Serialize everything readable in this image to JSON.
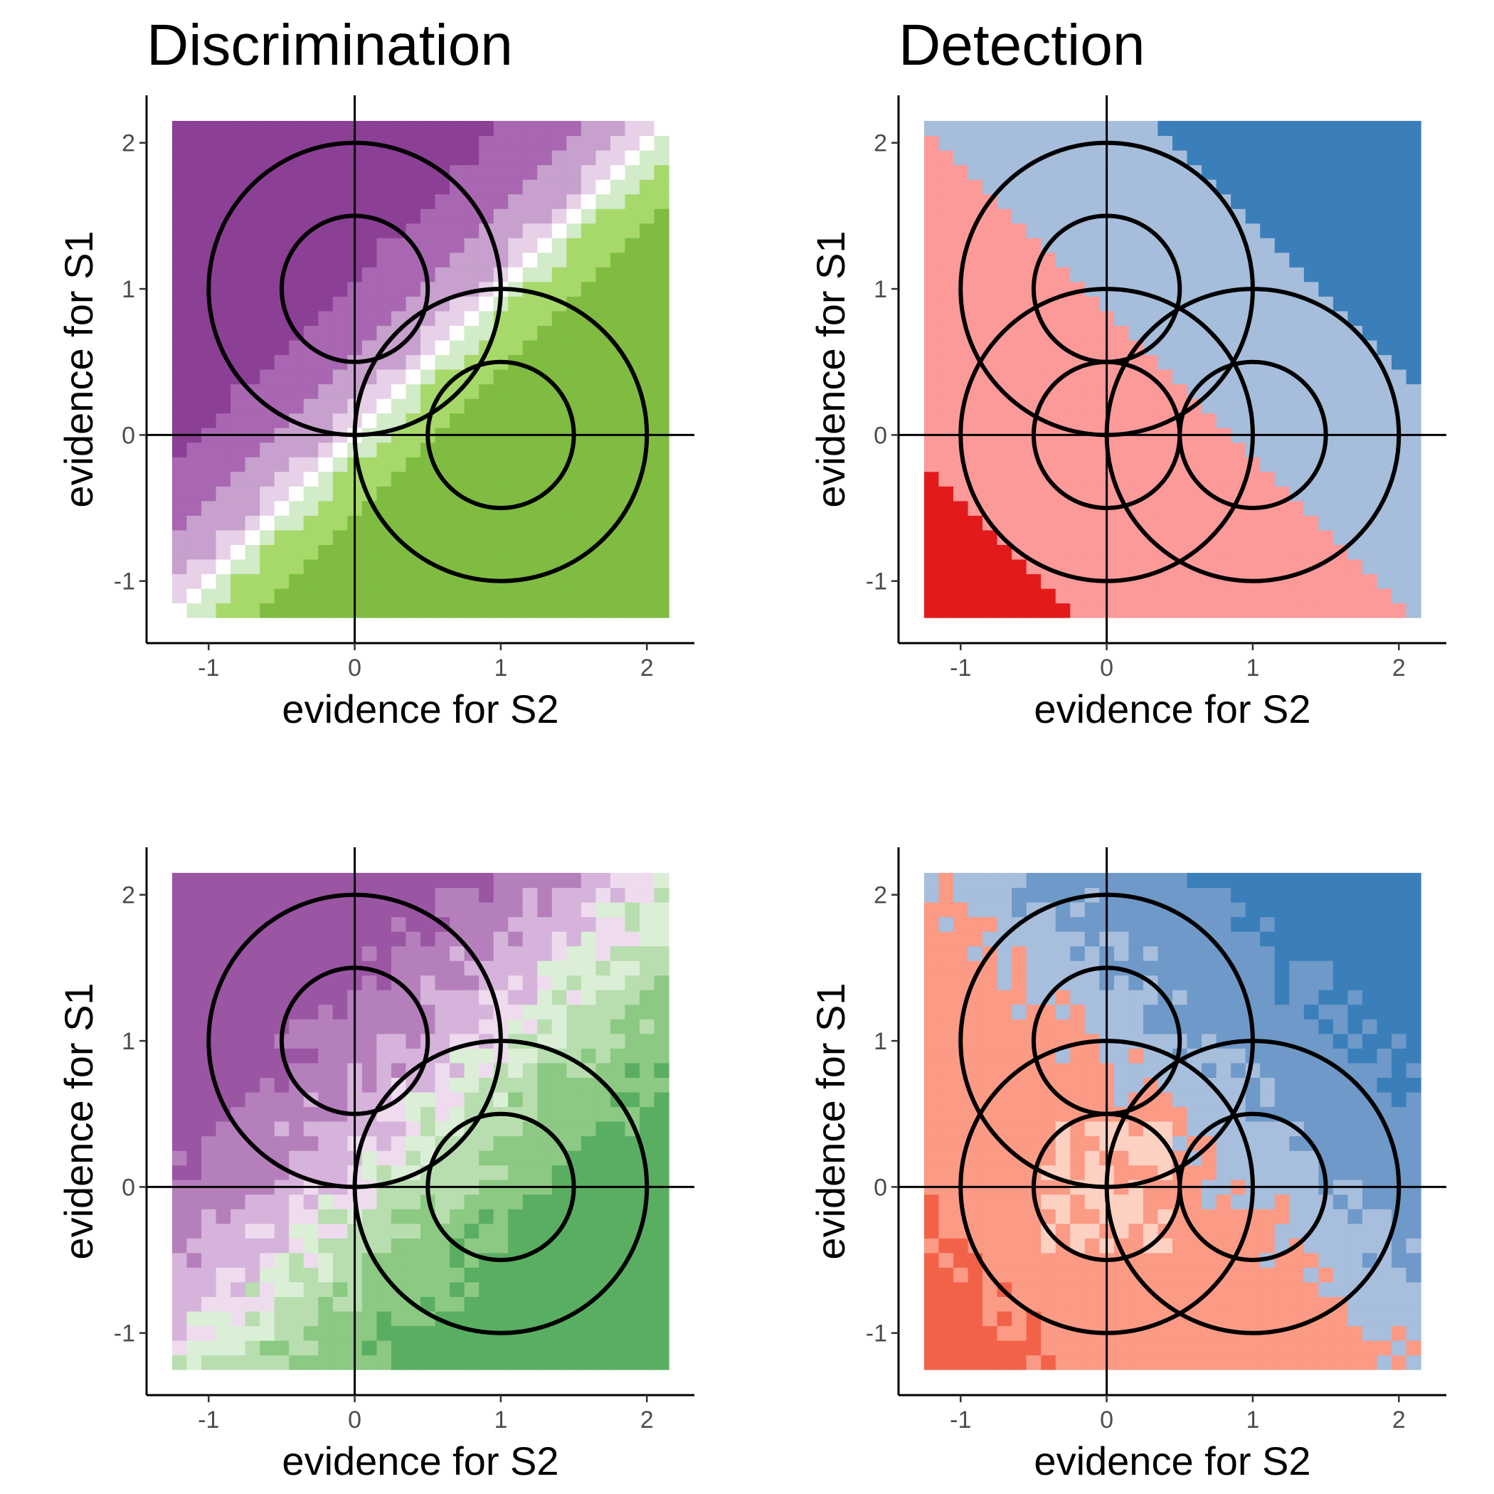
{
  "figure": {
    "titles": [
      "Discrimination",
      "Detection"
    ]
  },
  "chart_data": [
    {
      "type": "heatmap",
      "panel": "top-left",
      "title": "Discrimination",
      "xlabel": "evidence for S2",
      "ylabel": "evidence for S1",
      "xlim": [
        -1.425,
        2.325
      ],
      "ylim": [
        -1.425,
        2.325
      ],
      "xticks": [
        -1,
        0,
        1,
        2
      ],
      "yticks": [
        -1,
        0,
        1,
        2
      ],
      "grid": false,
      "grid_range": [
        -1.25,
        2.15
      ],
      "cell_size": 0.1,
      "coloring": "diagonal",
      "palette": [
        "#7fbc41",
        "#a6d96a",
        "#d2ebc9",
        "#ffffff",
        "#e6d1e8",
        "#c7a0cd",
        "#a867b0",
        "#8b3f95"
      ],
      "bands": [
        0.2,
        0.55,
        1.1,
        1.7
      ],
      "circles": [
        {
          "cx": 0,
          "cy": 1,
          "r": 0.5
        },
        {
          "cx": 0,
          "cy": 1,
          "r": 1.0
        },
        {
          "cx": 1,
          "cy": 0,
          "r": 0.5
        },
        {
          "cx": 1,
          "cy": 0,
          "r": 1.0
        }
      ],
      "reference_lines": {
        "x": 0,
        "y": 0
      }
    },
    {
      "type": "heatmap",
      "panel": "top-right",
      "title": "Detection",
      "xlabel": "evidence for S2",
      "ylabel": "evidence for S1",
      "xlim": [
        -1.425,
        2.325
      ],
      "ylim": [
        -1.425,
        2.325
      ],
      "xticks": [
        -1,
        0,
        1,
        2
      ],
      "yticks": [
        -1,
        0,
        1,
        2
      ],
      "grid": false,
      "grid_range": [
        -1.25,
        2.15
      ],
      "cell_size": 0.1,
      "coloring": "radial",
      "palette": [
        "#e31a1c",
        "#fb9a99",
        "#a6bddb",
        "#3a7fba"
      ],
      "radial_thresholds": [
        0.55,
        1.7,
        2.5
      ],
      "circles": [
        {
          "cx": 0,
          "cy": 1,
          "r": 0.5
        },
        {
          "cx": 0,
          "cy": 1,
          "r": 1.0
        },
        {
          "cx": 1,
          "cy": 0,
          "r": 0.5
        },
        {
          "cx": 1,
          "cy": 0,
          "r": 1.0
        },
        {
          "cx": 0,
          "cy": 0,
          "r": 0.5
        },
        {
          "cx": 0,
          "cy": 0,
          "r": 1.0
        }
      ],
      "reference_lines": {
        "x": 0,
        "y": 0
      }
    },
    {
      "type": "heatmap",
      "panel": "bottom-left",
      "title": "",
      "xlabel": "evidence for S2",
      "ylabel": "evidence for S1",
      "xlim": [
        -1.425,
        2.325
      ],
      "ylim": [
        -1.425,
        2.325
      ],
      "xticks": [
        -1,
        0,
        1,
        2
      ],
      "yticks": [
        -1,
        0,
        1,
        2
      ],
      "grid": false,
      "grid_range": [
        -1.25,
        2.15
      ],
      "cell_size": 0.1,
      "coloring": "diagonal-noisy",
      "palette": [
        "#5aae61",
        "#8cc983",
        "#b8deaf",
        "#dbefd6",
        "#eedbee",
        "#d6b3da",
        "#b57fbc",
        "#9a55a3"
      ],
      "bands": [
        0.25,
        0.7,
        1.3,
        1.9
      ],
      "circles": [
        {
          "cx": 0,
          "cy": 1,
          "r": 0.5
        },
        {
          "cx": 0,
          "cy": 1,
          "r": 1.0
        },
        {
          "cx": 1,
          "cy": 0,
          "r": 0.5
        },
        {
          "cx": 1,
          "cy": 0,
          "r": 1.0
        }
      ],
      "reference_lines": {
        "x": 0,
        "y": 0
      }
    },
    {
      "type": "heatmap",
      "panel": "bottom-right",
      "title": "",
      "xlabel": "evidence for S2",
      "ylabel": "evidence for S1",
      "xlim": [
        -1.425,
        2.325
      ],
      "ylim": [
        -1.425,
        2.325
      ],
      "xticks": [
        -1,
        0,
        1,
        2
      ],
      "yticks": [
        -1,
        0,
        1,
        2
      ],
      "grid": false,
      "grid_range": [
        -1.25,
        2.15
      ],
      "cell_size": 0.1,
      "coloring": "radial-noisy",
      "palette": [
        "#f26249",
        "#fb9a85",
        "#fcd1c2",
        "#a7bedd",
        "#6e99c8",
        "#3a7fba"
      ],
      "radial_thresholds": [
        0.45,
        0.6,
        1.6,
        2.1,
        2.75
      ],
      "circles": [
        {
          "cx": 0,
          "cy": 1,
          "r": 0.5
        },
        {
          "cx": 0,
          "cy": 1,
          "r": 1.0
        },
        {
          "cx": 1,
          "cy": 0,
          "r": 0.5
        },
        {
          "cx": 1,
          "cy": 0,
          "r": 1.0
        },
        {
          "cx": 0,
          "cy": 0,
          "r": 0.5
        },
        {
          "cx": 0,
          "cy": 0,
          "r": 1.0
        }
      ],
      "reference_lines": {
        "x": 0,
        "y": 0
      }
    }
  ]
}
